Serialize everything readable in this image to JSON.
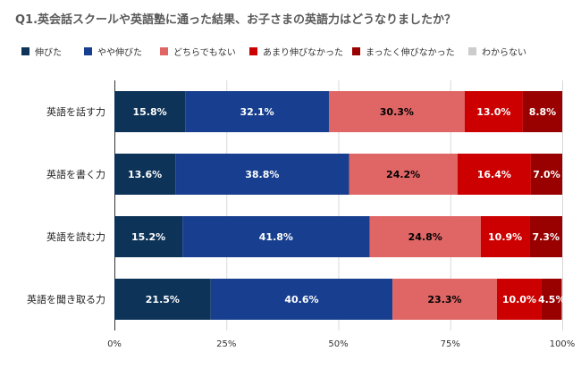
{
  "chart_data": {
    "type": "bar",
    "orientation": "horizontal",
    "stacked": true,
    "title": "Q1.英会話スクールや英語塾に通った結果、お子さまの英語力はどうなりましたか？",
    "categories": [
      "英語を話す力",
      "英語を書く力",
      "英語を読む力",
      "英語を聞き取る力"
    ],
    "series": [
      {
        "name": "伸びた",
        "color": "#0d3358",
        "values": [
          15.8,
          13.6,
          15.2,
          21.5
        ]
      },
      {
        "name": "やや伸びた",
        "color": "#183f8f",
        "values": [
          32.1,
          38.8,
          41.8,
          40.6
        ]
      },
      {
        "name": "どちらでもない",
        "color": "#e06666",
        "values": [
          30.3,
          24.2,
          24.8,
          23.3
        ]
      },
      {
        "name": "あまり伸びなかった",
        "color": "#cc0000",
        "values": [
          13.0,
          16.4,
          10.9,
          10.0
        ]
      },
      {
        "name": "まったく伸びなかった",
        "color": "#990000",
        "values": [
          8.8,
          7.0,
          7.3,
          4.5
        ]
      },
      {
        "name": "わからない",
        "color": "#cccccc",
        "values": [
          0,
          0,
          0,
          0
        ]
      }
    ],
    "data_labels": [
      [
        "15.8%",
        "32.1%",
        "30.3%",
        "13.0%",
        "8.8%"
      ],
      [
        "13.6%",
        "38.8%",
        "24.2%",
        "16.4%",
        "7.0%"
      ],
      [
        "15.2%",
        "41.8%",
        "24.8%",
        "10.9%",
        "7.3%"
      ],
      [
        "21.5%",
        "40.6%",
        "23.3%",
        "10.0%",
        "4.5%"
      ]
    ],
    "xlim": [
      0,
      100
    ],
    "xticks": [
      "0%",
      "25%",
      "50%",
      "75%",
      "100%"
    ],
    "grid": true,
    "legend_position": "top"
  }
}
